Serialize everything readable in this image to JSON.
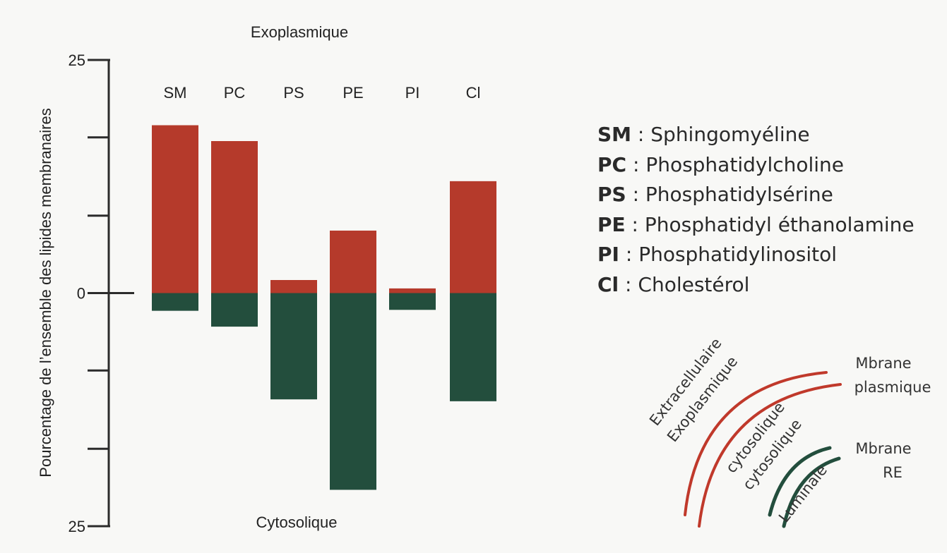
{
  "chart_data": {
    "type": "bar",
    "top_label": "Exoplasmique",
    "bottom_label": "Cytosolique",
    "ylabel": "Pourcentage de l’ensemble des lipides membranaires",
    "yticks": [
      {
        "value": 25,
        "label": "25"
      },
      {
        "value": 0,
        "label": "0"
      },
      {
        "value": -25,
        "label": "25"
      }
    ],
    "minor_ticks": [
      16.7,
      8.3,
      -8.3,
      -16.7
    ],
    "ylim": [
      -25,
      25
    ],
    "categories": [
      "SM",
      "PC",
      "PS",
      "PE",
      "PI",
      "Cl"
    ],
    "series": [
      {
        "values": [
          18.0,
          16.3,
          1.4,
          6.7,
          0.5,
          12.0
        ],
        "color": "#b53a2b"
      },
      {
        "values": [
          -1.9,
          -3.6,
          -11.4,
          -21.1,
          -1.8,
          -11.6
        ],
        "color": "#234e3d"
      }
    ]
  },
  "legend": [
    {
      "abbr": "SM",
      "sep": " : ",
      "name": "Sphingomyéline"
    },
    {
      "abbr": "PC",
      "sep": " : ",
      "name": "Phosphatidylcholine"
    },
    {
      "abbr": "PS",
      "sep": " : ",
      "name": "Phosphatidylsérine"
    },
    {
      "abbr": "PE",
      "sep": " : ",
      "name": "Phosphatidyl éthanolamine"
    },
    {
      "abbr": "PI",
      "sep": " : ",
      "name": "Phosphatidylinositol"
    },
    {
      "abbr": "Cl",
      "sep": " : ",
      "name": "Cholestérol"
    }
  ],
  "diagram": {
    "outer_text_1": "Extracellulaire",
    "outer_text_2": "Exoplasmique",
    "middle_text_1": "cytosolique",
    "middle_text_2": "cytosolique",
    "inner_text": "Luminale",
    "plasma_label_1": "Mbrane",
    "plasma_label_2": "plasmique",
    "er_label_1": "Mbrane",
    "er_label_2": "RE",
    "red": "#c0392b",
    "green": "#234e3d"
  }
}
